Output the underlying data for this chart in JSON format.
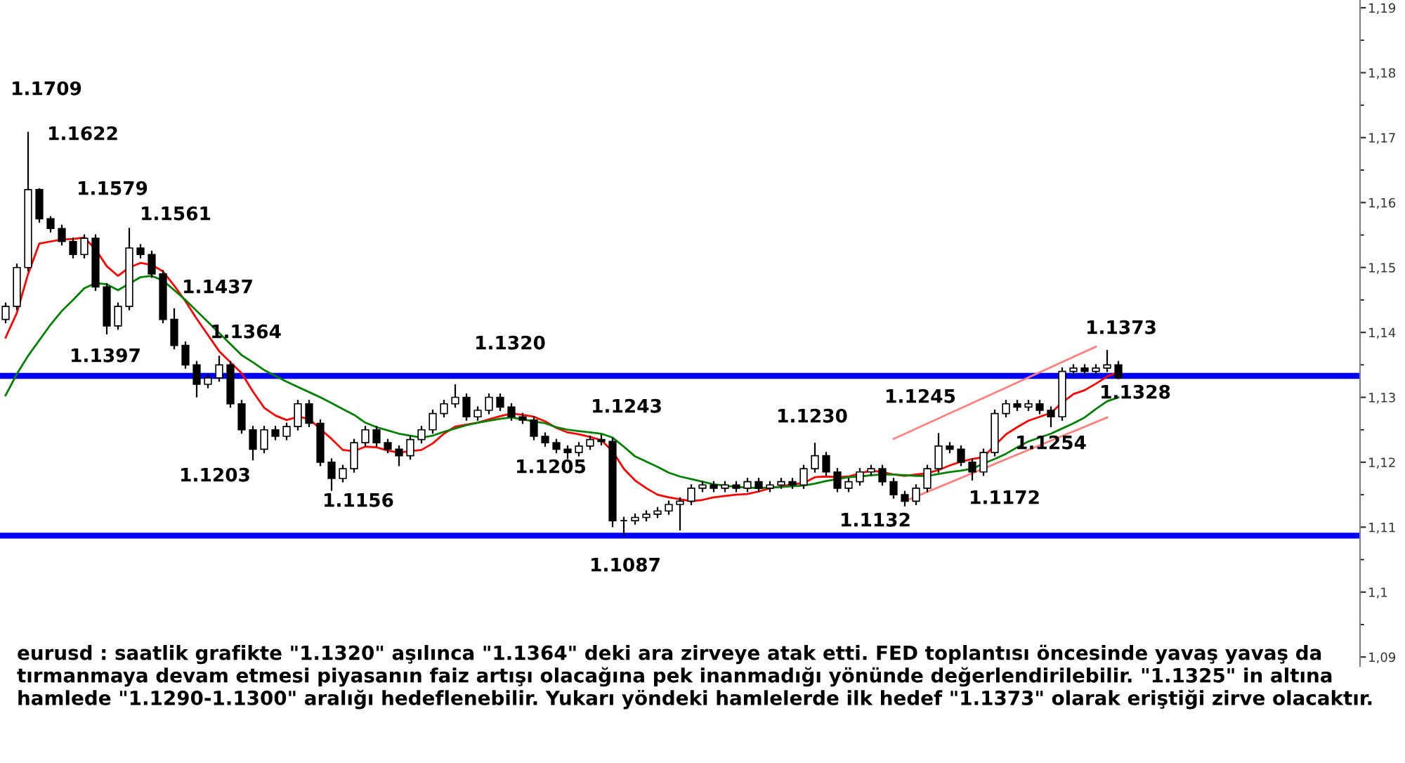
{
  "chart_data": {
    "type": "candlestick",
    "categories": [
      null,
      null,
      null,
      null,
      null,
      null,
      null,
      null,
      null,
      null,
      null,
      null,
      null,
      null,
      null,
      null,
      null,
      null,
      null,
      null,
      null,
      null,
      null,
      null,
      null,
      null,
      null,
      null,
      null,
      null,
      null,
      null,
      null,
      null,
      null,
      null,
      null,
      null,
      null,
      null,
      null,
      null,
      null,
      null,
      null,
      null,
      null,
      null,
      null,
      null,
      null,
      null,
      null,
      null,
      null,
      null,
      null,
      null,
      null,
      null,
      null,
      null,
      null,
      null,
      null,
      null,
      null,
      null,
      null,
      null,
      null,
      null,
      null,
      null,
      null,
      null,
      null,
      null,
      null,
      null,
      null,
      null,
      null,
      null,
      null,
      null,
      null,
      null,
      null,
      null,
      null,
      null,
      null,
      null,
      null,
      null,
      null,
      null,
      null,
      null,
      null,
      null,
      null,
      null,
      null,
      null,
      null,
      null,
      null,
      null,
      null,
      null,
      null,
      null,
      null,
      null,
      null,
      null,
      null,
      null,
      null
    ],
    "ohlc": [
      [
        1.142,
        1.1446,
        1.1414,
        1.144
      ],
      [
        1.144,
        1.1506,
        1.1434,
        1.15
      ],
      [
        1.15,
        1.1709,
        1.1494,
        1.162
      ],
      [
        1.162,
        1.1622,
        1.1569,
        1.1575
      ],
      [
        1.1575,
        1.1579,
        1.1554,
        1.156
      ],
      [
        1.156,
        1.1566,
        1.1534,
        1.154
      ],
      [
        1.154,
        1.1546,
        1.1514,
        1.152
      ],
      [
        1.152,
        1.1551,
        1.1514,
        1.1545
      ],
      [
        1.1545,
        1.1551,
        1.1464,
        1.147
      ],
      [
        1.147,
        1.1476,
        1.1397,
        1.141
      ],
      [
        1.141,
        1.1446,
        1.1404,
        1.144
      ],
      [
        1.144,
        1.1561,
        1.1434,
        1.153
      ],
      [
        1.153,
        1.1536,
        1.1514,
        1.152
      ],
      [
        1.152,
        1.1526,
        1.1484,
        1.149
      ],
      [
        1.149,
        1.1496,
        1.1414,
        1.142
      ],
      [
        1.142,
        1.1437,
        1.1374,
        1.138
      ],
      [
        1.138,
        1.1386,
        1.1344,
        1.135
      ],
      [
        1.135,
        1.1356,
        1.13,
        1.132
      ],
      [
        1.132,
        1.1336,
        1.1314,
        1.133
      ],
      [
        1.133,
        1.1364,
        1.1324,
        1.135
      ],
      [
        1.135,
        1.1356,
        1.1284,
        1.129
      ],
      [
        1.129,
        1.1296,
        1.1244,
        1.125
      ],
      [
        1.125,
        1.1256,
        1.1203,
        1.122
      ],
      [
        1.122,
        1.1256,
        1.1214,
        1.125
      ],
      [
        1.125,
        1.1256,
        1.1234,
        1.124
      ],
      [
        1.124,
        1.1261,
        1.1234,
        1.1255
      ],
      [
        1.1255,
        1.1296,
        1.1249,
        1.129
      ],
      [
        1.129,
        1.1296,
        1.1254,
        1.126
      ],
      [
        1.126,
        1.1266,
        1.1194,
        1.12
      ],
      [
        1.12,
        1.1206,
        1.1156,
        1.1175
      ],
      [
        1.1175,
        1.1196,
        1.1169,
        1.119
      ],
      [
        1.119,
        1.1236,
        1.1184,
        1.123
      ],
      [
        1.123,
        1.1256,
        1.1224,
        1.125
      ],
      [
        1.125,
        1.1256,
        1.1224,
        1.123
      ],
      [
        1.123,
        1.1236,
        1.1214,
        1.122
      ],
      [
        1.122,
        1.1226,
        1.1194,
        1.121
      ],
      [
        1.121,
        1.1241,
        1.1204,
        1.1235
      ],
      [
        1.1235,
        1.1256,
        1.1229,
        1.125
      ],
      [
        1.125,
        1.1281,
        1.1244,
        1.1275
      ],
      [
        1.1275,
        1.1296,
        1.1269,
        1.129
      ],
      [
        1.129,
        1.132,
        1.1284,
        1.13
      ],
      [
        1.13,
        1.1306,
        1.1264,
        1.127
      ],
      [
        1.127,
        1.1286,
        1.1264,
        1.128
      ],
      [
        1.128,
        1.1306,
        1.1274,
        1.13
      ],
      [
        1.13,
        1.1306,
        1.1279,
        1.1285
      ],
      [
        1.1285,
        1.1291,
        1.1264,
        1.127
      ],
      [
        1.127,
        1.1276,
        1.1259,
        1.1265
      ],
      [
        1.1265,
        1.1271,
        1.1234,
        1.124
      ],
      [
        1.124,
        1.1246,
        1.1224,
        1.123
      ],
      [
        1.123,
        1.1236,
        1.1214,
        1.122
      ],
      [
        1.122,
        1.1226,
        1.1205,
        1.1215
      ],
      [
        1.1215,
        1.1231,
        1.1209,
        1.1225
      ],
      [
        1.1225,
        1.1241,
        1.1219,
        1.1235
      ],
      [
        1.1235,
        1.1243,
        1.1226,
        1.1232
      ],
      [
        1.1232,
        1.1238,
        1.11,
        1.111
      ],
      [
        1.111,
        1.1116,
        1.1087,
        1.111
      ],
      [
        1.111,
        1.1121,
        1.1104,
        1.1115
      ],
      [
        1.1115,
        1.1126,
        1.1109,
        1.112
      ],
      [
        1.112,
        1.1131,
        1.1114,
        1.1125
      ],
      [
        1.1125,
        1.1141,
        1.1119,
        1.1135
      ],
      [
        1.1135,
        1.1146,
        1.1095,
        1.114
      ],
      [
        1.114,
        1.1166,
        1.1134,
        1.116
      ],
      [
        1.116,
        1.1171,
        1.1154,
        1.1165
      ],
      [
        1.1165,
        1.1171,
        1.1154,
        1.116
      ],
      [
        1.116,
        1.1171,
        1.1154,
        1.1165
      ],
      [
        1.1165,
        1.1171,
        1.1154,
        1.116
      ],
      [
        1.116,
        1.1176,
        1.1154,
        1.117
      ],
      [
        1.117,
        1.1176,
        1.1154,
        1.116
      ],
      [
        1.116,
        1.1171,
        1.1154,
        1.1165
      ],
      [
        1.1165,
        1.1176,
        1.1159,
        1.117
      ],
      [
        1.117,
        1.1176,
        1.1159,
        1.1165
      ],
      [
        1.1165,
        1.1196,
        1.1159,
        1.119
      ],
      [
        1.119,
        1.123,
        1.1184,
        1.121
      ],
      [
        1.121,
        1.1216,
        1.1179,
        1.1185
      ],
      [
        1.1185,
        1.1191,
        1.1154,
        1.116
      ],
      [
        1.116,
        1.1176,
        1.1154,
        1.117
      ],
      [
        1.117,
        1.1191,
        1.1164,
        1.1185
      ],
      [
        1.1185,
        1.1196,
        1.1179,
        1.119
      ],
      [
        1.119,
        1.1196,
        1.1164,
        1.117
      ],
      [
        1.117,
        1.1176,
        1.1144,
        1.115
      ],
      [
        1.115,
        1.1156,
        1.1132,
        1.114
      ],
      [
        1.114,
        1.1166,
        1.1134,
        1.116
      ],
      [
        1.116,
        1.1196,
        1.1154,
        1.119
      ],
      [
        1.119,
        1.1245,
        1.1184,
        1.1225
      ],
      [
        1.1225,
        1.1231,
        1.1214,
        1.122
      ],
      [
        1.122,
        1.1226,
        1.1194,
        1.12
      ],
      [
        1.12,
        1.1206,
        1.1172,
        1.1185
      ],
      [
        1.1185,
        1.1221,
        1.1179,
        1.1215
      ],
      [
        1.1215,
        1.1281,
        1.1209,
        1.1275
      ],
      [
        1.1275,
        1.1296,
        1.1269,
        1.129
      ],
      [
        1.129,
        1.1296,
        1.1279,
        1.1285
      ],
      [
        1.1285,
        1.1296,
        1.1279,
        1.129
      ],
      [
        1.129,
        1.1296,
        1.1274,
        1.128
      ],
      [
        1.128,
        1.1286,
        1.1254,
        1.127
      ],
      [
        1.127,
        1.1346,
        1.1264,
        1.134
      ],
      [
        1.134,
        1.1351,
        1.1334,
        1.1345
      ],
      [
        1.1345,
        1.1351,
        1.1334,
        1.134
      ],
      [
        1.134,
        1.1351,
        1.1334,
        1.1345
      ],
      [
        1.1345,
        1.1373,
        1.1339,
        1.135
      ],
      [
        1.135,
        1.1356,
        1.1328,
        1.133
      ],
      null,
      null,
      null,
      null,
      null,
      null,
      null,
      null,
      null,
      null,
      null,
      null,
      null,
      null,
      null,
      null,
      null,
      null,
      null,
      null,
      null
    ],
    "series": [
      {
        "type": "line",
        "color": "#ff0000",
        "values": [
          1.1392,
          1.143,
          1.149,
          1.1537,
          1.154,
          1.1543,
          1.1544,
          1.1546,
          1.1528,
          1.1502,
          1.1487,
          1.15,
          1.1507,
          1.1504,
          1.1494,
          1.1472,
          1.1448,
          1.1421,
          1.1396,
          1.1371,
          1.1354,
          1.1337,
          1.1309,
          1.1284,
          1.1272,
          1.1265,
          1.127,
          1.1267,
          1.1251,
          1.1236,
          1.1219,
          1.1217,
          1.1224,
          1.1223,
          1.1218,
          1.1215,
          1.1217,
          1.1219,
          1.1229,
          1.1244,
          1.1255,
          1.1258,
          1.1261,
          1.1266,
          1.1271,
          1.1275,
          1.1273,
          1.127,
          1.1263,
          1.1253,
          1.1246,
          1.1243,
          1.1239,
          1.1234,
          1.1217,
          1.119,
          1.1172,
          1.116,
          1.115,
          1.1146,
          1.1143,
          1.114,
          1.1142,
          1.1146,
          1.1148,
          1.115,
          1.1151,
          1.1155,
          1.116,
          1.1163,
          1.1166,
          1.1168,
          1.1177,
          1.1178,
          1.1177,
          1.1178,
          1.1183,
          1.1187,
          1.1185,
          1.1181,
          1.1179,
          1.1181,
          1.1183,
          1.1188,
          1.1195,
          1.1201,
          1.1205,
          1.1208,
          1.1226,
          1.1243,
          1.1254,
          1.1264,
          1.127,
          1.1276,
          1.1292,
          1.1305,
          1.1311,
          1.1321,
          1.1332,
          1.1339,
          null,
          null,
          null,
          null,
          null,
          null,
          null,
          null,
          null,
          null,
          null,
          null,
          null,
          null,
          null,
          null,
          null,
          null,
          null,
          null,
          null
        ]
      },
      {
        "type": "line",
        "color": "#008000",
        "values": [
          1.1303,
          1.1336,
          1.1364,
          1.1388,
          1.1412,
          1.1433,
          1.145,
          1.1468,
          1.1476,
          1.1474,
          1.1465,
          1.1475,
          1.1485,
          1.1487,
          1.148,
          1.1465,
          1.145,
          1.1433,
          1.1416,
          1.1399,
          1.1382,
          1.1365,
          1.1354,
          1.1342,
          1.1333,
          1.1324,
          1.1316,
          1.1308,
          1.13,
          1.1291,
          1.1282,
          1.1273,
          1.1261,
          1.1254,
          1.1249,
          1.1244,
          1.1241,
          1.1238,
          1.1241,
          1.1247,
          1.1252,
          1.1257,
          1.1261,
          1.1264,
          1.1267,
          1.1269,
          1.1266,
          1.1263,
          1.126,
          1.1254,
          1.125,
          1.1248,
          1.1246,
          1.1244,
          1.1238,
          1.1224,
          1.1209,
          1.1201,
          1.1193,
          1.1184,
          1.1178,
          1.1174,
          1.117,
          1.1166,
          1.1164,
          1.1162,
          1.1161,
          1.116,
          1.1161,
          1.1162,
          1.1163,
          1.1164,
          1.1167,
          1.1171,
          1.1174,
          1.1177,
          1.1178,
          1.118,
          1.1181,
          1.1181,
          1.118,
          1.1179,
          1.1179,
          1.1182,
          1.1185,
          1.1187,
          1.119,
          1.1198,
          1.1205,
          1.1213,
          1.1223,
          1.1232,
          1.1238,
          1.1244,
          1.1252,
          1.126,
          1.1269,
          1.1282,
          1.1294,
          1.13,
          null,
          null,
          null,
          null,
          null,
          null,
          null,
          null,
          null,
          null,
          null,
          null,
          null,
          null,
          null,
          null,
          null,
          null,
          null,
          null,
          null
        ]
      },
      {
        "type": "line",
        "color": "#ff8080",
        "values": [
          null,
          null,
          null,
          null,
          null,
          null,
          null,
          null,
          null,
          null,
          null,
          null,
          null,
          null,
          null,
          null,
          null,
          null,
          null,
          null,
          null,
          null,
          null,
          null,
          null,
          null,
          null,
          null,
          null,
          null,
          null,
          null,
          null,
          null,
          null,
          null,
          null,
          null,
          null,
          null,
          null,
          null,
          null,
          null,
          null,
          null,
          null,
          null,
          null,
          null,
          null,
          null,
          null,
          null,
          null,
          null,
          null,
          null,
          null,
          null,
          null,
          null,
          null,
          null,
          null,
          null,
          null,
          null,
          null,
          null,
          null,
          null,
          null,
          null,
          null,
          null,
          null,
          null,
          null,
          1.1236,
          null,
          null,
          null,
          null,
          null,
          null,
          null,
          null,
          null,
          null,
          null,
          null,
          null,
          null,
          null,
          null,
          null,
          1.1378,
          null,
          null,
          null,
          null,
          null,
          null,
          null,
          null,
          null,
          null,
          null,
          null,
          null,
          null,
          null,
          null,
          null,
          null,
          null,
          null,
          null,
          null,
          null
        ]
      },
      {
        "type": "line",
        "color": "#ff8080",
        "values": [
          null,
          null,
          null,
          null,
          null,
          null,
          null,
          null,
          null,
          null,
          null,
          null,
          null,
          null,
          null,
          null,
          null,
          null,
          null,
          null,
          null,
          null,
          null,
          null,
          null,
          null,
          null,
          null,
          null,
          null,
          null,
          null,
          null,
          null,
          null,
          null,
          null,
          null,
          null,
          null,
          null,
          null,
          null,
          null,
          null,
          null,
          null,
          null,
          null,
          null,
          null,
          null,
          null,
          null,
          null,
          null,
          null,
          null,
          null,
          null,
          null,
          null,
          null,
          null,
          null,
          null,
          null,
          null,
          null,
          null,
          null,
          null,
          null,
          null,
          null,
          null,
          null,
          null,
          null,
          null,
          1.114,
          null,
          null,
          null,
          null,
          null,
          null,
          null,
          null,
          null,
          null,
          null,
          null,
          null,
          null,
          null,
          null,
          null,
          1.1269,
          null,
          null,
          null,
          null,
          null,
          null,
          null,
          null,
          null,
          null,
          null,
          null,
          null,
          null,
          null,
          null,
          null,
          null,
          null,
          null,
          null,
          null
        ]
      }
    ],
    "ylim": [
      1.0886,
      1.1912
    ],
    "yticks": [
      {
        "value": 1.09,
        "label": "1,09"
      },
      {
        "value": 1.1,
        "label": "1,1"
      },
      {
        "value": 1.11,
        "label": "1,11"
      },
      {
        "value": 1.12,
        "label": "1,12"
      },
      {
        "value": 1.13,
        "label": "1,13"
      },
      {
        "value": 1.14,
        "label": "1,14"
      },
      {
        "value": 1.15,
        "label": "1,15"
      },
      {
        "value": 1.16,
        "label": "1,16"
      },
      {
        "value": 1.17,
        "label": "1,17"
      },
      {
        "value": 1.18,
        "label": "1,18"
      },
      {
        "value": 1.19,
        "label": "1,19"
      }
    ],
    "tick_labels": "y",
    "ref_lines": [
      {
        "axis": "y",
        "value": 1.1333,
        "color": "#0000ff"
      },
      {
        "axis": "y",
        "value": 1.1087,
        "color": "#0000ff"
      }
    ],
    "annotations": [
      "1.1709",
      "1.1622",
      "1.1579",
      "1.1561",
      "1.1397",
      "1.1437",
      "1.1364",
      "1.1203",
      "1.1156",
      "1.1320",
      "1.1205",
      "1.1243",
      "1.1087",
      "1.1230",
      "1.1132",
      "1.1245",
      "1.1172",
      "1.1254",
      "1.1373",
      "1.1328",
      "eurusd : saatlik grafikte \"1.1320\" aşılınca \"1.1364\" deki ara zirveye atak etti. FED toplantısı öncesinde yavaş yavaş da tırmanmaya devam etmesi piyasanın faiz artışı olacağına pek inanmadığı yönünde değerlendirilebilir. \"1.1325\" in altına hamlede \"1.1290-1.1300\" aralığı hedeflenebilir. Yukarı yöndeki hamlelerde ilk hedef \"1.1373\" olarak eriştiği zirve olacaktır."
    ]
  }
}
